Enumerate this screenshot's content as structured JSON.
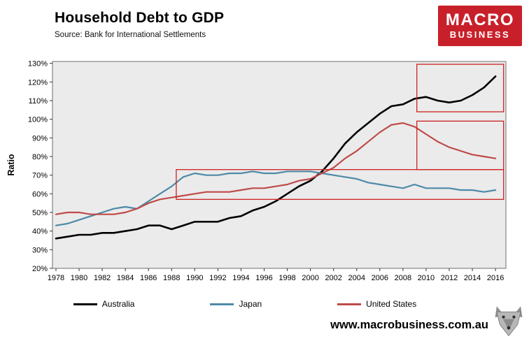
{
  "header": {
    "title": "Household Debt to GDP",
    "source": "Source: Bank for International Settlements"
  },
  "logo": {
    "line1": "MACRO",
    "line2": "BUSINESS",
    "bg_color": "#c8202a"
  },
  "footer": {
    "url": "www.macrobusiness.com.au"
  },
  "chart_data": {
    "type": "line",
    "title": "Household Debt to GDP",
    "xlabel": "",
    "ylabel": "Ratio",
    "xlim": [
      1977.7,
      2016.9
    ],
    "ylim": [
      20,
      131
    ],
    "grid": false,
    "legend_position": "bottom",
    "colors": {
      "plot_bg": "#ebebeb",
      "axis_border": "#6e6e6e",
      "annotation": "#cc2222"
    },
    "yticks": [
      20,
      30,
      40,
      50,
      60,
      70,
      80,
      90,
      100,
      110,
      120,
      130
    ],
    "ytick_labels": [
      "20%",
      "30%",
      "40%",
      "50%",
      "60%",
      "70%",
      "80%",
      "90%",
      "100%",
      "110%",
      "120%",
      "130%"
    ],
    "xticks": [
      1978,
      1980,
      1982,
      1984,
      1986,
      1988,
      1990,
      1992,
      1994,
      1996,
      1998,
      2000,
      2002,
      2004,
      2006,
      2008,
      2010,
      2012,
      2014,
      2016
    ],
    "x": [
      1978,
      1979,
      1980,
      1981,
      1982,
      1983,
      1984,
      1985,
      1986,
      1987,
      1988,
      1989,
      1990,
      1991,
      1992,
      1993,
      1994,
      1995,
      1996,
      1997,
      1998,
      1999,
      2000,
      2001,
      2002,
      2003,
      2004,
      2005,
      2006,
      2007,
      2008,
      2009,
      2010,
      2011,
      2012,
      2013,
      2014,
      2015,
      2016
    ],
    "series": [
      {
        "name": "Australia",
        "color": "#000000",
        "width": 2.6,
        "values": [
          36,
          37,
          38,
          38,
          39,
          39,
          40,
          41,
          43,
          43,
          41,
          43,
          45,
          45,
          45,
          47,
          48,
          51,
          53,
          56,
          60,
          64,
          67,
          72,
          79,
          87,
          93,
          98,
          103,
          107,
          108,
          111,
          112,
          110,
          109,
          110,
          113,
          117,
          123
        ]
      },
      {
        "name": "Japan",
        "color": "#4d8aa6",
        "width": 2.2,
        "values": [
          43,
          44,
          46,
          48,
          50,
          52,
          53,
          52,
          56,
          60,
          64,
          69,
          71,
          70,
          70,
          71,
          71,
          72,
          71,
          71,
          72,
          72,
          72,
          71,
          70,
          69,
          68,
          66,
          65,
          64,
          63,
          65,
          63,
          63,
          63,
          62,
          62,
          61,
          62
        ]
      },
      {
        "name": "United States",
        "color": "#bf4b49",
        "width": 2.2,
        "values": [
          49,
          50,
          50,
          49,
          49,
          49,
          50,
          52,
          55,
          57,
          58,
          59,
          60,
          61,
          61,
          61,
          62,
          63,
          63,
          64,
          65,
          67,
          68,
          71,
          74,
          79,
          83,
          88,
          93,
          97,
          98,
          96,
          92,
          88,
          85,
          83,
          81,
          80,
          79
        ]
      }
    ],
    "annotation_boxes": [
      {
        "x0": 2009.2,
        "x1": 2016.7,
        "y0": 104,
        "y1": 129.5
      },
      {
        "x0": 2009.2,
        "x1": 2016.7,
        "y0": 73,
        "y1": 99
      },
      {
        "x0": 1988.4,
        "x1": 2016.7,
        "y0": 57,
        "y1": 73
      }
    ]
  }
}
